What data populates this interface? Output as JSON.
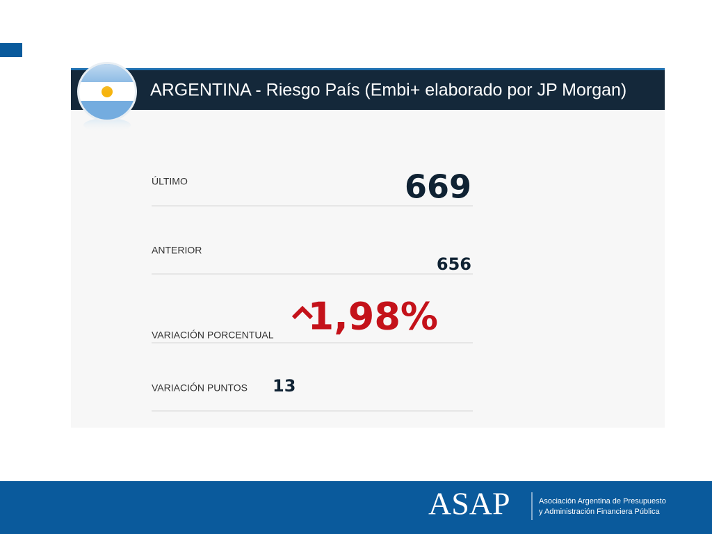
{
  "header": {
    "title": "ARGENTINA - Riesgo País (Embi+ elaborado por JP Morgan)"
  },
  "rows": [
    {
      "label": "ÚLTIMO",
      "value": "669"
    },
    {
      "label": "ANTERIOR",
      "value": "656"
    },
    {
      "label": "VARIACIÓN PORCENTUAL",
      "value": "1,98%"
    },
    {
      "label": "VARIACIÓN PUNTOS",
      "value": "13"
    }
  ],
  "footer": {
    "logo": "ASAP",
    "org_line1": "Asociación Argentina de Presupuesto",
    "org_line2": "y Administración Financiera Pública"
  }
}
